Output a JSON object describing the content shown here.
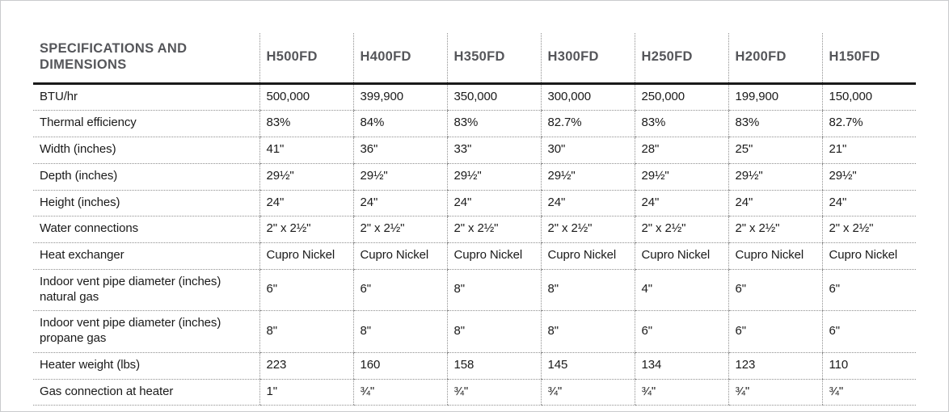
{
  "table": {
    "title": "SPECIFICATIONS AND DIMENSIONS",
    "columns": [
      "H500FD",
      "H400FD",
      "H350FD",
      "H300FD",
      "H250FD",
      "H200FD",
      "H150FD"
    ],
    "rows": [
      {
        "label": "BTU/hr",
        "values": [
          "500,000",
          "399,900",
          "350,000",
          "300,000",
          "250,000",
          "199,900",
          "150,000"
        ]
      },
      {
        "label": "Thermal efficiency",
        "values": [
          "83%",
          "84%",
          "83%",
          "82.7%",
          "83%",
          "83%",
          "82.7%"
        ]
      },
      {
        "label": "Width (inches)",
        "values": [
          "41\"",
          "36\"",
          "33\"",
          "30\"",
          "28\"",
          "25\"",
          "21\""
        ]
      },
      {
        "label": "Depth (inches)",
        "values": [
          "29½\"",
          "29½\"",
          "29½\"",
          "29½\"",
          "29½\"",
          "29½\"",
          "29½\""
        ]
      },
      {
        "label": "Height (inches)",
        "values": [
          "24\"",
          "24\"",
          "24\"",
          "24\"",
          "24\"",
          "24\"",
          "24\""
        ]
      },
      {
        "label": "Water connections",
        "values": [
          "2\" x 2½\"",
          "2\" x 2½\"",
          "2\" x 2½\"",
          "2\" x 2½\"",
          "2\" x 2½\"",
          "2\" x 2½\"",
          "2\" x 2½\""
        ]
      },
      {
        "label": "Heat exchanger",
        "values": [
          "Cupro Nickel",
          "Cupro Nickel",
          "Cupro Nickel",
          "Cupro Nickel",
          "Cupro Nickel",
          "Cupro Nickel",
          "Cupro Nickel"
        ]
      },
      {
        "label": "Indoor vent pipe diameter (inches) natural gas",
        "values": [
          "6\"",
          "6\"",
          "8\"",
          "8\"",
          "4\"",
          "6\"",
          "6\""
        ]
      },
      {
        "label": "Indoor vent pipe diameter (inches) propane gas",
        "values": [
          "8\"",
          "8\"",
          "8\"",
          "8\"",
          "6\"",
          "6\"",
          "6\""
        ]
      },
      {
        "label": "Heater weight (lbs)",
        "values": [
          "223",
          "160",
          "158",
          "145",
          "134",
          "123",
          "110"
        ]
      },
      {
        "label": "Gas connection at heater",
        "values": [
          "1\"",
          "¾\"",
          "¾\"",
          "¾\"",
          "¾\"",
          "¾\"",
          "¾\""
        ]
      }
    ],
    "colors": {
      "header_text": "#55565a",
      "body_text": "#1a1a1a",
      "header_rule": "#1a1a1a",
      "dotted_grid": "#8f8f8f",
      "page_border": "#c9cbcd"
    }
  }
}
